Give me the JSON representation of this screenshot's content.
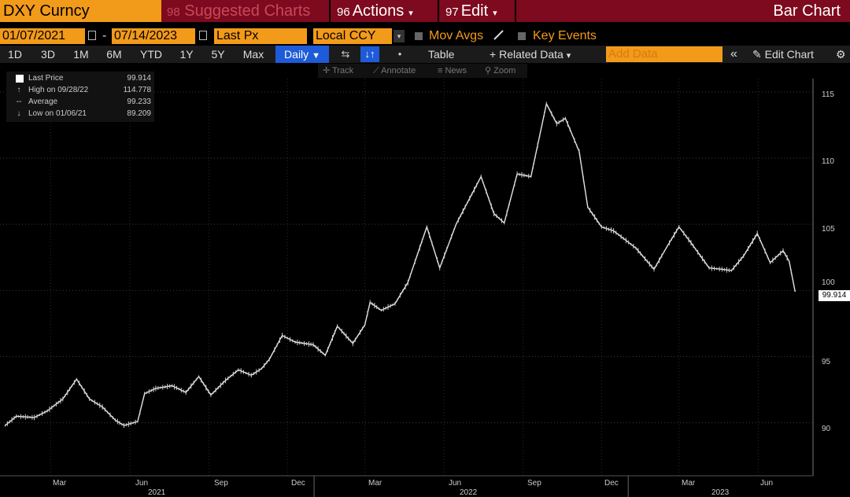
{
  "toolbar": {
    "ticker": "DXY Curncy",
    "suggested": {
      "code": "98",
      "label": "Suggested Charts"
    },
    "actions": {
      "code": "96",
      "label": "Actions",
      "caret": "▾"
    },
    "edit": {
      "code": "97",
      "label": "Edit",
      "caret": "▾"
    },
    "chart_type": "Bar Chart"
  },
  "options": {
    "start_date": "01/07/2021",
    "end_date": "07/14/2023",
    "date_dash": "-",
    "field": "Last Px",
    "currency": "Local CCY",
    "currency_caret": "▾",
    "mov_avgs": "Mov Avgs",
    "key_events": "Key Events"
  },
  "periods": [
    "1D",
    "3D",
    "1M",
    "6M",
    "YTD",
    "1Y",
    "5Y",
    "Max"
  ],
  "controls": {
    "daily": "Daily",
    "daily_caret": "▼",
    "compare_icon": "⇆",
    "bar_icon": "↓↑",
    "dot": "•",
    "table": "Table",
    "related_data": "Related Data",
    "related_plus": "+",
    "related_caret": "▾",
    "add_data_placeholder": "Add Data",
    "collapse": "«",
    "edit_chart": "Edit Chart",
    "edit_chart_icon": "✎",
    "settings_icon": "⚙"
  },
  "chart_tools": [
    "Track",
    "Annotate",
    "News",
    "Zoom"
  ],
  "tool_icons": [
    "✛",
    "⟋",
    "≡",
    "⚲"
  ],
  "legend": [
    {
      "icon": "square",
      "label": "Last Price",
      "value": "99.914"
    },
    {
      "icon": "↑",
      "label": "High on 09/28/22",
      "value": "114.778"
    },
    {
      "icon": "--",
      "label": "Average",
      "value": "99.233"
    },
    {
      "icon": "↓",
      "label": "Low on 01/06/21",
      "value": "89.209"
    }
  ],
  "last_price_tag": "99.914",
  "colors": {
    "accent": "#f29a1a",
    "header": "#7d0a1e",
    "selected": "#1e5bd8",
    "series": "#e6e6e6"
  },
  "chart_data": {
    "type": "line",
    "title": "DXY Curncy",
    "series": [
      {
        "name": "Last Price",
        "points": [
          [
            "2021-01-07",
            89.8
          ],
          [
            "2021-01-20",
            90.5
          ],
          [
            "2021-02-10",
            90.4
          ],
          [
            "2021-02-25",
            90.9
          ],
          [
            "2021-03-15",
            91.8
          ],
          [
            "2021-03-31",
            93.3
          ],
          [
            "2021-04-15",
            91.8
          ],
          [
            "2021-04-30",
            91.2
          ],
          [
            "2021-05-15",
            90.2
          ],
          [
            "2021-05-25",
            89.8
          ],
          [
            "2021-06-10",
            90.1
          ],
          [
            "2021-06-18",
            92.2
          ],
          [
            "2021-07-01",
            92.6
          ],
          [
            "2021-07-20",
            92.8
          ],
          [
            "2021-08-05",
            92.3
          ],
          [
            "2021-08-20",
            93.5
          ],
          [
            "2021-09-03",
            92.1
          ],
          [
            "2021-09-20",
            93.2
          ],
          [
            "2021-10-05",
            94.0
          ],
          [
            "2021-10-20",
            93.6
          ],
          [
            "2021-11-01",
            94.1
          ],
          [
            "2021-11-10",
            94.8
          ],
          [
            "2021-11-25",
            96.6
          ],
          [
            "2021-12-10",
            96.1
          ],
          [
            "2021-12-31",
            95.9
          ],
          [
            "2022-01-14",
            95.1
          ],
          [
            "2022-01-28",
            97.3
          ],
          [
            "2022-02-15",
            96.0
          ],
          [
            "2022-03-01",
            97.4
          ],
          [
            "2022-03-07",
            99.1
          ],
          [
            "2022-03-20",
            98.5
          ],
          [
            "2022-04-05",
            99.0
          ],
          [
            "2022-04-20",
            100.6
          ],
          [
            "2022-05-12",
            104.8
          ],
          [
            "2022-05-27",
            101.7
          ],
          [
            "2022-06-15",
            105.0
          ],
          [
            "2022-07-14",
            108.6
          ],
          [
            "2022-07-29",
            105.8
          ],
          [
            "2022-08-10",
            105.1
          ],
          [
            "2022-08-25",
            108.8
          ],
          [
            "2022-09-10",
            108.6
          ],
          [
            "2022-09-28",
            114.1
          ],
          [
            "2022-10-10",
            112.6
          ],
          [
            "2022-10-20",
            113.0
          ],
          [
            "2022-11-05",
            110.5
          ],
          [
            "2022-11-15",
            106.3
          ],
          [
            "2022-12-01",
            104.8
          ],
          [
            "2022-12-15",
            104.5
          ],
          [
            "2023-01-10",
            103.2
          ],
          [
            "2023-01-31",
            101.6
          ],
          [
            "2023-02-15",
            103.3
          ],
          [
            "2023-03-01",
            104.8
          ],
          [
            "2023-03-15",
            103.6
          ],
          [
            "2023-04-05",
            101.7
          ],
          [
            "2023-04-20",
            101.6
          ],
          [
            "2023-05-01",
            101.5
          ],
          [
            "2023-05-15",
            102.6
          ],
          [
            "2023-05-31",
            104.3
          ],
          [
            "2023-06-15",
            102.1
          ],
          [
            "2023-06-30",
            103.0
          ],
          [
            "2023-07-07",
            102.2
          ],
          [
            "2023-07-14",
            99.9
          ]
        ]
      }
    ],
    "ylim": [
      86,
      116
    ],
    "yticks": [
      "115",
      "110",
      "105",
      "100",
      "95",
      "90"
    ],
    "xticks": [
      "Mar",
      "Jun",
      "Sep",
      "Dec",
      "Mar",
      "Jun",
      "Sep",
      "Dec",
      "Mar",
      "Jun"
    ],
    "xyears": [
      "2021",
      "2022",
      "2023"
    ]
  }
}
